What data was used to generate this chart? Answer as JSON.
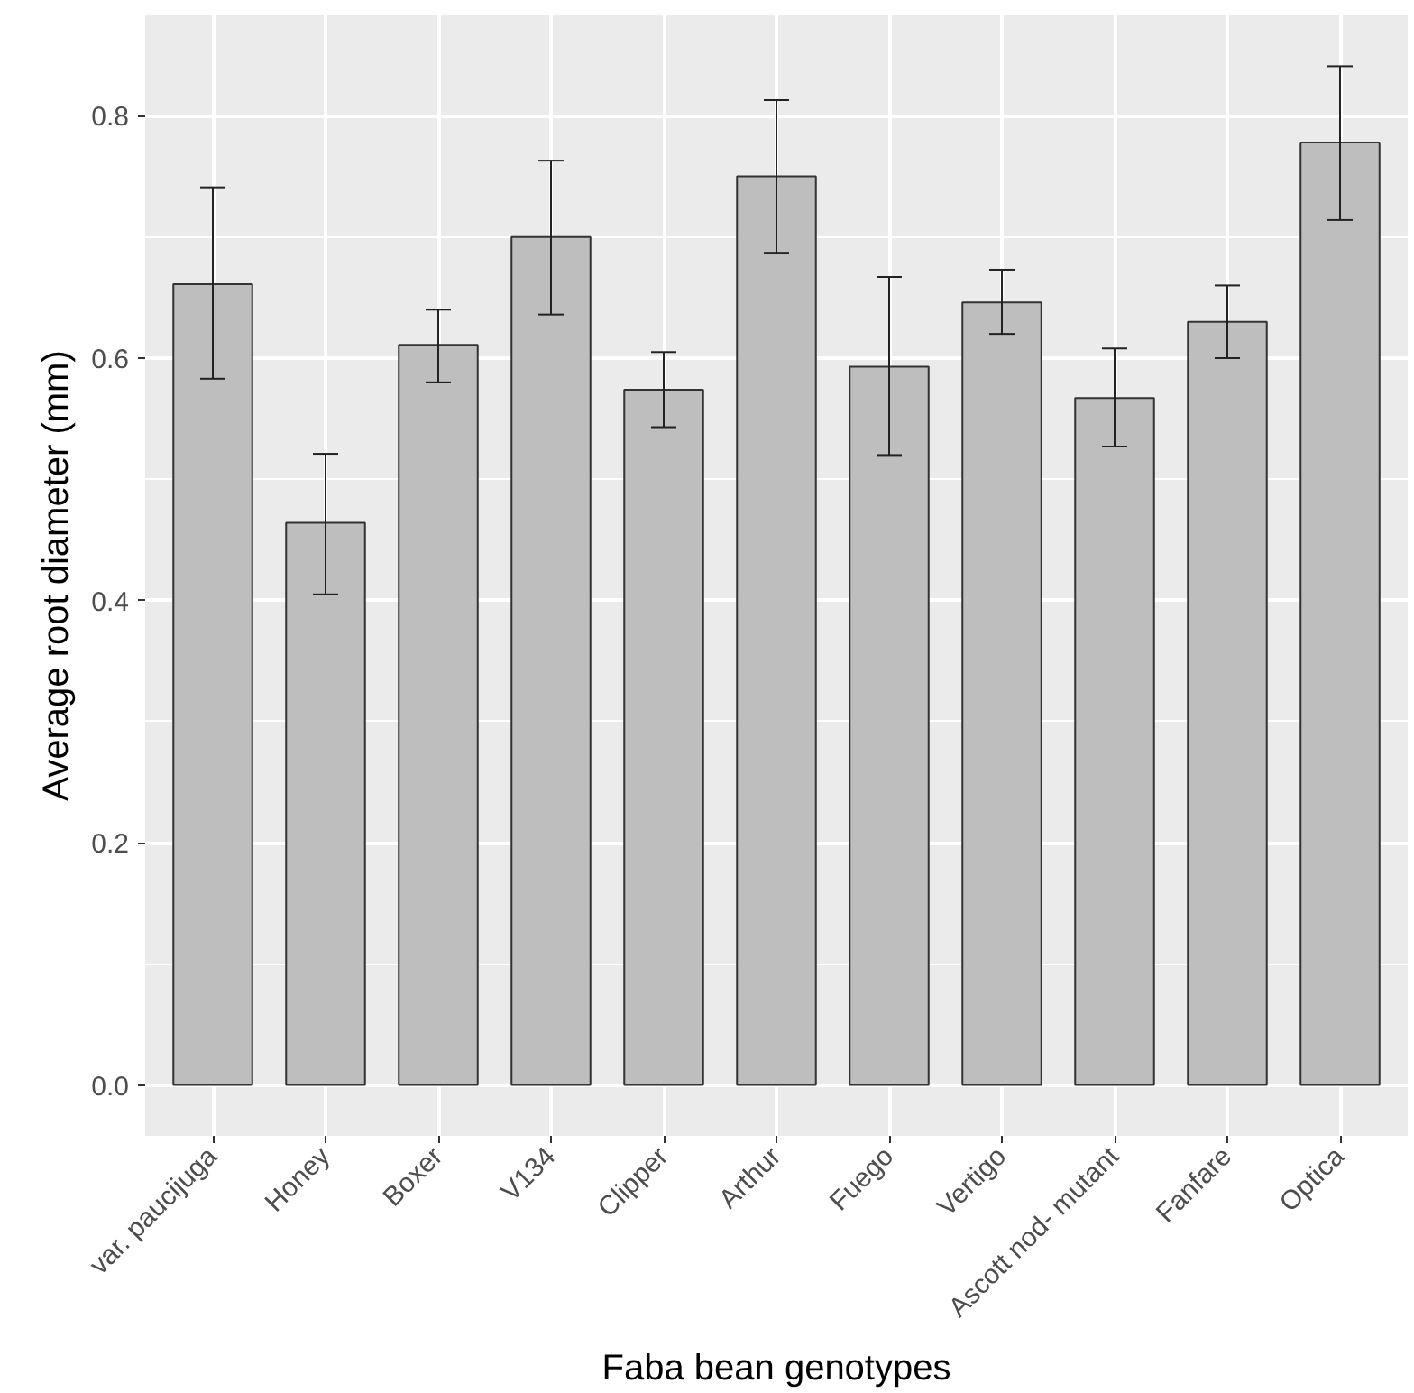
{
  "chart_data": {
    "type": "bar",
    "xlabel": "Faba bean genotypes",
    "ylabel": "Average root diameter (mm)",
    "categories": [
      "var. paucijuga",
      "Honey",
      "Boxer",
      "V134",
      "Clipper",
      "Arthur",
      "Fuego",
      "Vertigo",
      "Ascott nod- mutant",
      "Fanfare",
      "Optica"
    ],
    "values": [
      0.661,
      0.464,
      0.611,
      0.7,
      0.574,
      0.75,
      0.593,
      0.646,
      0.567,
      0.63,
      0.778
    ],
    "errors": [
      [
        0.583,
        0.741
      ],
      [
        0.405,
        0.521
      ],
      [
        0.58,
        0.64
      ],
      [
        0.636,
        0.763
      ],
      [
        0.543,
        0.605
      ],
      [
        0.687,
        0.813
      ],
      [
        0.52,
        0.667
      ],
      [
        0.62,
        0.673
      ],
      [
        0.527,
        0.608
      ],
      [
        0.6,
        0.66
      ],
      [
        0.714,
        0.841
      ]
    ],
    "color": "#bebebe",
    "ylim": [
      -0.042,
      0.883
    ],
    "yticks": [
      {
        "value": 0,
        "label": "0.0"
      },
      0.2,
      0.4,
      0.6,
      0.8
    ],
    "grid": true
  }
}
